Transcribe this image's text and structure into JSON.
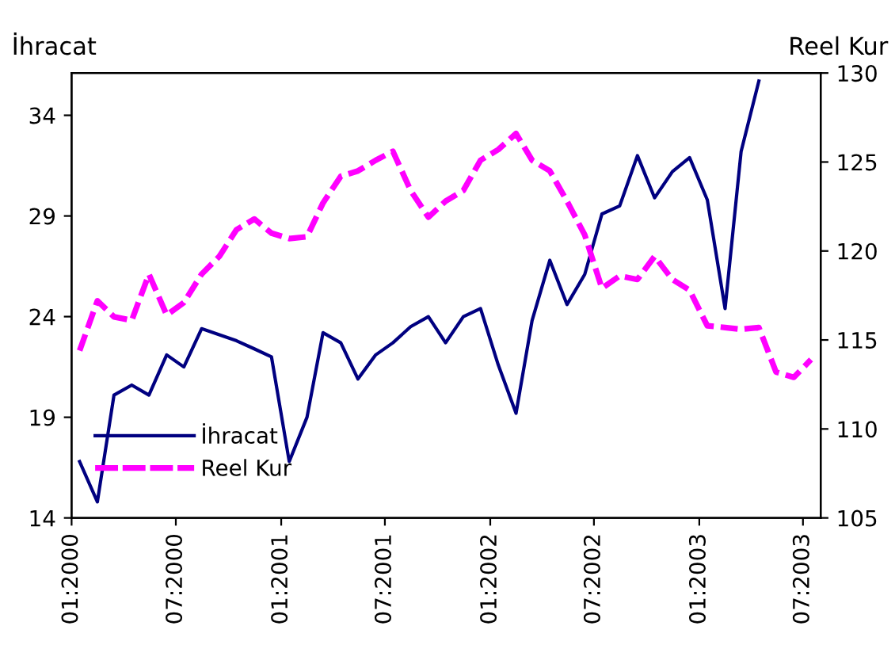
{
  "chart_data": {
    "type": "line",
    "ylabel": "İhracat",
    "y2label": "Reel Kur",
    "xlim": [
      "2000-01",
      "2003-08"
    ],
    "xticks": [
      {
        "value": "2000-01",
        "label": "01:2000"
      },
      {
        "value": "2000-07",
        "label": "07:2000"
      },
      {
        "value": "2001-01",
        "label": "01:2001"
      },
      {
        "value": "2001-07",
        "label": "07:2001"
      },
      {
        "value": "2002-01",
        "label": "01:2002"
      },
      {
        "value": "2002-07",
        "label": "07:2002"
      },
      {
        "value": "2003-01",
        "label": "01:2003"
      },
      {
        "value": "2003-07",
        "label": "07:2003"
      }
    ],
    "ylim": [
      14,
      36.1
    ],
    "yticks": [
      14,
      19,
      24,
      29,
      34
    ],
    "y2lim": [
      105,
      130
    ],
    "y2ticks": [
      105,
      110,
      115,
      120,
      125,
      130
    ],
    "grid": false,
    "legend": "bottom left",
    "series": [
      {
        "name": "İhracat",
        "color": "#000080",
        "line_style": "solid",
        "x": [
          "2000-01-15",
          "2000-02-15",
          "2000-03-15",
          "2000-04-15",
          "2000-05-15",
          "2000-06-15",
          "2000-07-15",
          "2000-08-15",
          "2000-09-15",
          "2000-10-15",
          "2000-11-15",
          "2000-12-15",
          "2001-01-15",
          "2001-02-15",
          "2001-03-15",
          "2001-04-15",
          "2001-05-15",
          "2001-06-15",
          "2001-07-15",
          "2001-08-15",
          "2001-09-15",
          "2001-10-15",
          "2001-11-15",
          "2001-12-15",
          "2002-01-15",
          "2002-02-15",
          "2002-03-15",
          "2002-04-15",
          "2002-05-15",
          "2002-06-15",
          "2002-07-15",
          "2002-08-15",
          "2002-09-15",
          "2002-10-15",
          "2002-11-15",
          "2002-12-15",
          "2003-01-15",
          "2003-02-15",
          "2003-03-15",
          "2003-04-15"
        ],
        "values": [
          16.8,
          14.8,
          20.1,
          20.6,
          20.1,
          22.1,
          21.5,
          23.4,
          23.1,
          22.8,
          22.4,
          22.0,
          16.8,
          19.0,
          23.2,
          22.7,
          20.9,
          22.1,
          22.7,
          23.5,
          24.0,
          22.7,
          24.0,
          24.4,
          21.6,
          19.2,
          23.8,
          26.8,
          24.6,
          26.1,
          29.1,
          29.5,
          32.0,
          29.9,
          31.2,
          31.9,
          29.8,
          24.4,
          32.2,
          35.7
        ]
      },
      {
        "name": "Reel Kur",
        "color": "#ff00ff",
        "line_style": "dashed",
        "axis": "y2",
        "x": [
          "2000-01-15",
          "2000-02-15",
          "2000-03-15",
          "2000-04-15",
          "2000-05-15",
          "2000-06-15",
          "2000-07-15",
          "2000-08-15",
          "2000-09-15",
          "2000-10-15",
          "2000-11-15",
          "2000-12-15",
          "2001-01-15",
          "2001-02-15",
          "2001-03-15",
          "2001-04-15",
          "2001-05-15",
          "2001-06-15",
          "2001-07-15",
          "2001-08-15",
          "2001-09-15",
          "2001-10-15",
          "2001-11-15",
          "2001-12-15",
          "2002-01-15",
          "2002-02-15",
          "2002-03-15",
          "2002-04-15",
          "2002-05-15",
          "2002-06-15",
          "2002-07-15",
          "2002-08-15",
          "2002-09-15",
          "2002-10-15",
          "2002-11-15",
          "2002-12-15",
          "2003-01-15",
          "2003-02-15",
          "2003-03-15",
          "2003-04-15",
          "2003-05-15",
          "2003-06-15",
          "2003-07-15"
        ],
        "values": [
          114.4,
          117.2,
          116.3,
          116.1,
          118.7,
          116.4,
          117.1,
          118.7,
          119.7,
          121.2,
          121.8,
          121.0,
          120.7,
          120.8,
          122.7,
          124.2,
          124.5,
          125.1,
          125.6,
          123.4,
          121.9,
          122.8,
          123.4,
          125.1,
          125.7,
          126.6,
          125.1,
          124.5,
          122.8,
          120.9,
          117.9,
          118.6,
          118.4,
          119.7,
          118.4,
          117.8,
          115.8,
          115.7,
          115.6,
          115.7,
          113.2,
          112.9,
          113.9
        ]
      }
    ]
  }
}
